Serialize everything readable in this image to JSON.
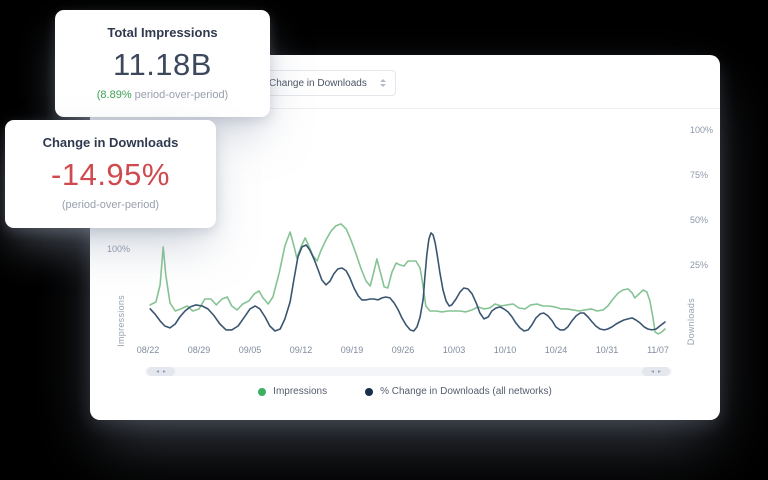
{
  "cards": {
    "impressions": {
      "title": "Total Impressions",
      "value": "11.18B",
      "delta": "(8.89%",
      "delta_suffix": " period-over-period)",
      "delta_color": "#3fa255"
    },
    "downloads": {
      "title": "Change in Downloads",
      "value": "-14.95%",
      "sub": "(period-over-period)",
      "value_color": "#cf4a4e"
    }
  },
  "chart_panel": {
    "dropdown": {
      "value": "Change in Downloads"
    },
    "left_axis": {
      "visible_tick": "100%",
      "title": "Impressions"
    },
    "right_axis": {
      "title": "Downloads"
    },
    "icons": {
      "scroll_left": "◂",
      "scroll_right": "▸"
    }
  },
  "chart_data": {
    "type": "line",
    "title": "",
    "grid": false,
    "legend_position": "bottom",
    "x_axis_labels": [
      "08/22",
      "08/29",
      "09/05",
      "09/12",
      "09/19",
      "09/26",
      "10/03",
      "10/10",
      "10/24",
      "10/31",
      "11/07"
    ],
    "xlim": [
      0,
      100
    ],
    "ylim": [
      -16.7,
      108.3
    ],
    "right_axis_ticks": [
      {
        "label": "100%",
        "value": 100
      },
      {
        "label": "75%",
        "value": 75
      },
      {
        "label": "50%",
        "value": 50
      },
      {
        "label": "25%",
        "value": 25
      }
    ],
    "series": [
      {
        "name": "Impressions",
        "axis": "left",
        "color": "#85c394",
        "legend_color": "#3bb061",
        "points": [
          [
            1,
            2.8
          ],
          [
            2.1,
            4.4
          ],
          [
            2.9,
            13.9
          ],
          [
            3.5,
            35
          ],
          [
            4,
            19.4
          ],
          [
            4.8,
            3.9
          ],
          [
            5.8,
            -0.6
          ],
          [
            6.9,
            0.6
          ],
          [
            8.1,
            2.2
          ],
          [
            9.2,
            -0.6
          ],
          [
            10.4,
            0.6
          ],
          [
            11.5,
            6.1
          ],
          [
            12.7,
            6.1
          ],
          [
            13.7,
            2.8
          ],
          [
            14.8,
            6.1
          ],
          [
            15.8,
            7.2
          ],
          [
            16.7,
            2.2
          ],
          [
            17.7,
            0
          ],
          [
            18.8,
            3.3
          ],
          [
            20,
            5
          ],
          [
            21,
            8.9
          ],
          [
            21.9,
            10.6
          ],
          [
            22.7,
            6.7
          ],
          [
            23.7,
            3.3
          ],
          [
            24.6,
            7.2
          ],
          [
            25.8,
            20.6
          ],
          [
            26.9,
            35.6
          ],
          [
            27.9,
            43.3
          ],
          [
            28.7,
            35
          ],
          [
            29.2,
            28.9
          ],
          [
            30,
            35
          ],
          [
            30.8,
            40
          ],
          [
            31.5,
            35.6
          ],
          [
            32.3,
            30
          ],
          [
            33.1,
            27.2
          ],
          [
            33.8,
            32.8
          ],
          [
            34.8,
            38.9
          ],
          [
            35.8,
            43.9
          ],
          [
            36.7,
            46.7
          ],
          [
            37.7,
            47.8
          ],
          [
            38.7,
            45
          ],
          [
            39.6,
            38.9
          ],
          [
            40.6,
            31.1
          ],
          [
            41.5,
            23.3
          ],
          [
            42.5,
            16.1
          ],
          [
            43.3,
            13.3
          ],
          [
            44,
            21.1
          ],
          [
            44.6,
            28.3
          ],
          [
            45.2,
            21.7
          ],
          [
            46,
            12.8
          ],
          [
            46.7,
            12.2
          ],
          [
            47.5,
            21.1
          ],
          [
            48.3,
            26.1
          ],
          [
            49,
            25
          ],
          [
            49.8,
            24.4
          ],
          [
            50.6,
            27.2
          ],
          [
            52.1,
            27.2
          ],
          [
            52.9,
            23.3
          ],
          [
            53.5,
            12.8
          ],
          [
            54,
            2.2
          ],
          [
            54.8,
            -0.6
          ],
          [
            56,
            -0.6
          ],
          [
            57.1,
            -1.1
          ],
          [
            58.3,
            -0.6
          ],
          [
            60.6,
            -0.6
          ],
          [
            61.7,
            -1.1
          ],
          [
            62.9,
            0
          ],
          [
            64,
            1.7
          ],
          [
            65.2,
            0.6
          ],
          [
            66.3,
            1.1
          ],
          [
            67.3,
            3.3
          ],
          [
            68.5,
            2.2
          ],
          [
            69.6,
            2.8
          ],
          [
            70.8,
            3.3
          ],
          [
            71.9,
            1.1
          ],
          [
            73.1,
            0.6
          ],
          [
            74.2,
            2.8
          ],
          [
            75.4,
            3.3
          ],
          [
            76.5,
            2.2
          ],
          [
            77.7,
            2.2
          ],
          [
            78.8,
            1.7
          ],
          [
            80,
            0.6
          ],
          [
            81.2,
            0.6
          ],
          [
            82.3,
            0
          ],
          [
            83.5,
            -0.6
          ],
          [
            84.6,
            0
          ],
          [
            85.8,
            0.6
          ],
          [
            86.9,
            -0.6
          ],
          [
            88.1,
            0
          ],
          [
            89,
            2.2
          ],
          [
            90,
            6.1
          ],
          [
            91,
            9.4
          ],
          [
            91.9,
            11.1
          ],
          [
            92.9,
            11.7
          ],
          [
            93.7,
            9.4
          ],
          [
            94.2,
            6.7
          ],
          [
            95,
            8.9
          ],
          [
            95.8,
            11.1
          ],
          [
            96.5,
            10
          ],
          [
            97.1,
            5
          ],
          [
            97.7,
            -4.4
          ],
          [
            98.1,
            -12.2
          ],
          [
            98.7,
            -13.3
          ],
          [
            99.4,
            -12.2
          ],
          [
            100,
            -10.6
          ]
        ]
      },
      {
        "name": "% Change in Downloads (all networks)",
        "axis": "right",
        "color": "#3a5570",
        "legend_color": "#14304d",
        "points": [
          [
            1,
            0.6
          ],
          [
            1.9,
            -2.2
          ],
          [
            2.9,
            -6.1
          ],
          [
            3.8,
            -8.9
          ],
          [
            4.8,
            -10
          ],
          [
            5.8,
            -7.8
          ],
          [
            6.7,
            -3.9
          ],
          [
            7.7,
            -0.6
          ],
          [
            8.7,
            1.7
          ],
          [
            9.8,
            2.8
          ],
          [
            11,
            2.2
          ],
          [
            12.1,
            0.6
          ],
          [
            13.3,
            -3.3
          ],
          [
            14.4,
            -7.8
          ],
          [
            15.6,
            -11.1
          ],
          [
            16.7,
            -11.1
          ],
          [
            17.9,
            -8.9
          ],
          [
            19,
            -4.4
          ],
          [
            20.2,
            0.6
          ],
          [
            21.2,
            2.2
          ],
          [
            22.1,
            0.6
          ],
          [
            23.1,
            -3.9
          ],
          [
            24,
            -8.9
          ],
          [
            25,
            -11.7
          ],
          [
            26,
            -10.6
          ],
          [
            26.9,
            -5
          ],
          [
            27.9,
            4.4
          ],
          [
            28.7,
            17.8
          ],
          [
            29.4,
            29.4
          ],
          [
            30.2,
            35
          ],
          [
            31,
            36.1
          ],
          [
            31.7,
            33.3
          ],
          [
            32.5,
            28.3
          ],
          [
            33.3,
            22.2
          ],
          [
            34,
            16.7
          ],
          [
            34.8,
            13.9
          ],
          [
            35.6,
            16.1
          ],
          [
            36.3,
            20
          ],
          [
            37.1,
            22.8
          ],
          [
            37.9,
            23.3
          ],
          [
            38.7,
            21.7
          ],
          [
            39.4,
            17.8
          ],
          [
            40.2,
            12.2
          ],
          [
            41,
            7.8
          ],
          [
            41.7,
            5.6
          ],
          [
            42.5,
            5.6
          ],
          [
            43.3,
            6.1
          ],
          [
            44,
            6.1
          ],
          [
            44.8,
            5.6
          ],
          [
            45.6,
            6.7
          ],
          [
            46.3,
            7.2
          ],
          [
            47.1,
            6.7
          ],
          [
            47.9,
            3.9
          ],
          [
            48.7,
            0
          ],
          [
            49.4,
            -4.4
          ],
          [
            50.2,
            -8.3
          ],
          [
            51,
            -11.1
          ],
          [
            51.7,
            -11.7
          ],
          [
            52.3,
            -9.4
          ],
          [
            52.9,
            -3.9
          ],
          [
            53.5,
            6.1
          ],
          [
            53.8,
            17.8
          ],
          [
            54.2,
            30.6
          ],
          [
            54.6,
            39.4
          ],
          [
            55,
            42.8
          ],
          [
            55.4,
            41.7
          ],
          [
            55.8,
            37.2
          ],
          [
            56.2,
            30.6
          ],
          [
            56.7,
            21.1
          ],
          [
            57.3,
            11.1
          ],
          [
            57.9,
            5
          ],
          [
            58.5,
            2.2
          ],
          [
            59,
            2.8
          ],
          [
            59.8,
            6.1
          ],
          [
            60.6,
            10
          ],
          [
            61.3,
            12.2
          ],
          [
            62.1,
            11.7
          ],
          [
            62.9,
            8.9
          ],
          [
            63.7,
            3.9
          ],
          [
            64.4,
            -1.7
          ],
          [
            65.2,
            -5
          ],
          [
            66,
            -3.9
          ],
          [
            66.7,
            -0.6
          ],
          [
            67.5,
            1.1
          ],
          [
            68.3,
            1.7
          ],
          [
            69,
            0.6
          ],
          [
            69.8,
            -1.1
          ],
          [
            70.6,
            -3.9
          ],
          [
            71.3,
            -7.2
          ],
          [
            72.1,
            -10
          ],
          [
            72.9,
            -11.7
          ],
          [
            73.7,
            -11.1
          ],
          [
            74.4,
            -8.3
          ],
          [
            75.2,
            -4.4
          ],
          [
            76,
            -2.2
          ],
          [
            76.7,
            -1.7
          ],
          [
            77.5,
            -3.3
          ],
          [
            78.3,
            -6.1
          ],
          [
            79,
            -9.4
          ],
          [
            79.8,
            -11.1
          ],
          [
            80.6,
            -11.1
          ],
          [
            81.3,
            -9.4
          ],
          [
            82.1,
            -6.1
          ],
          [
            82.9,
            -3.3
          ],
          [
            83.7,
            -1.7
          ],
          [
            84.4,
            -1.7
          ],
          [
            85.2,
            -3.9
          ],
          [
            86,
            -6.7
          ],
          [
            86.7,
            -8.9
          ],
          [
            87.5,
            -10.6
          ],
          [
            88.3,
            -11.1
          ],
          [
            89,
            -10.6
          ],
          [
            89.8,
            -9.4
          ],
          [
            90.6,
            -7.8
          ],
          [
            91.3,
            -6.7
          ],
          [
            92.1,
            -5.6
          ],
          [
            92.9,
            -5
          ],
          [
            93.7,
            -4.4
          ],
          [
            94.4,
            -5.6
          ],
          [
            95.2,
            -7.2
          ],
          [
            96,
            -9.4
          ],
          [
            96.7,
            -10.6
          ],
          [
            97.5,
            -11.1
          ],
          [
            98.3,
            -10.6
          ],
          [
            99,
            -8.9
          ],
          [
            100,
            -6.7
          ]
        ]
      }
    ]
  }
}
